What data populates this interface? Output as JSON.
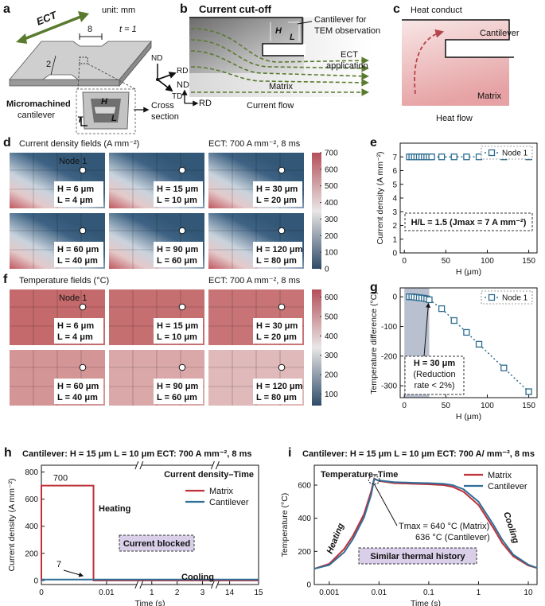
{
  "panels": {
    "a": {
      "label": "a",
      "ect": "ECT",
      "unit": "unit: mm",
      "length": "8",
      "thickness": "t = 1",
      "width": "2",
      "axes": [
        "ND",
        "RD",
        "TD"
      ],
      "cantilever": [
        "Micromachined",
        "cantilever"
      ],
      "dims": [
        "H",
        "L",
        "T"
      ],
      "section": [
        "Cross",
        "section"
      ]
    },
    "b": {
      "label": "b",
      "title": "Current cut-off",
      "cantilever": [
        "Cantilever for",
        "TEM observation"
      ],
      "ect": [
        "ECT",
        "application"
      ],
      "matrix": "Matrix",
      "flow": "Current flow",
      "axes": [
        "ND",
        "RD"
      ],
      "dims": [
        "H",
        "L"
      ]
    },
    "c": {
      "label": "c",
      "title": "Heat conduct",
      "cantilever": "Cantilever",
      "matrix": "Matrix",
      "flow": "Heat flow"
    },
    "d": {
      "label": "d",
      "title": "Current density fields (A mm⁻²)",
      "condition": "ECT: 700 A mm⁻², 8 ms",
      "node": "Node 1",
      "tiles": [
        [
          "H = 6 μm",
          "L = 4 μm"
        ],
        [
          "H = 15 μm",
          "L = 10 μm"
        ],
        [
          "H = 30 μm",
          "L = 20 μm"
        ],
        [
          "H = 60 μm",
          "L = 40 μm"
        ],
        [
          "H = 90 μm",
          "L = 60 μm"
        ],
        [
          "H = 120 μm",
          "L = 80 μm"
        ]
      ],
      "colorbar": {
        "range": [
          0,
          700
        ],
        "ticks": [
          0,
          100,
          200,
          300,
          400,
          500,
          600,
          700
        ]
      }
    },
    "f": {
      "label": "f",
      "title": "Temperature fields (°C)",
      "condition": "ECT: 700 A mm⁻², 8 ms",
      "node": "Node 1",
      "tiles": [
        [
          "H = 6 μm",
          "L = 4 μm"
        ],
        [
          "H = 15 μm",
          "L = 10 μm"
        ],
        [
          "H = 30 μm",
          "L = 20 μm"
        ],
        [
          "H = 60 μm",
          "L = 40 μm"
        ],
        [
          "H = 90 μm",
          "L = 60 μm"
        ],
        [
          "H = 120 μm",
          "L = 80 μm"
        ]
      ],
      "colorbar": {
        "range": [
          40,
          640
        ],
        "ticks": [
          100,
          200,
          300,
          400,
          500,
          600
        ]
      }
    }
  },
  "chart_data": [
    {
      "panel": "e",
      "type": "scatter",
      "x": [
        6,
        9,
        12,
        15,
        18,
        21,
        24,
        27,
        30,
        33,
        45,
        60,
        75,
        90,
        120,
        150
      ],
      "series": [
        {
          "name": "Node 1",
          "color": "#2c6b8f",
          "values": [
            7,
            7,
            7,
            7,
            7,
            7,
            7,
            7,
            7,
            7,
            7,
            7,
            7,
            7,
            7,
            7
          ]
        }
      ],
      "xlim": [
        -5,
        160
      ],
      "xticks": [
        0,
        50,
        100,
        150
      ],
      "ylim": [
        0,
        8
      ],
      "yticks": [
        0,
        1,
        2,
        3,
        4,
        5,
        6,
        7
      ],
      "xlabel": "H (μm)",
      "ylabel": "Current density (A mm⁻²)",
      "legend": "upper right",
      "annotations": [
        "H/L = 1.5 (Jmax = 7 A mm⁻²)"
      ]
    },
    {
      "panel": "g",
      "type": "scatter",
      "x": [
        6,
        9,
        12,
        15,
        18,
        21,
        24,
        27,
        30,
        45,
        60,
        75,
        90,
        120,
        150
      ],
      "series": [
        {
          "name": "Node 1",
          "color": "#2c6b8f",
          "values": [
            0,
            0,
            -1,
            -2,
            -3,
            -4,
            -5,
            -7,
            -10,
            -40,
            -80,
            -120,
            -160,
            -240,
            -320
          ]
        }
      ],
      "xlim": [
        -5,
        160
      ],
      "xticks": [
        0,
        50,
        100,
        150
      ],
      "ylim": [
        -340,
        30
      ],
      "yticks": [
        -300,
        -200,
        -100,
        0
      ],
      "highlight_xrange": [
        0,
        30
      ],
      "xlabel": "H (μm)",
      "ylabel": "Temperature difference (°C)",
      "legend": "upper right",
      "annotations": [
        "H = 30 μm",
        "(Reduction",
        "rate < 2%)"
      ]
    },
    {
      "panel": "h",
      "type": "line",
      "subtitle": "Cantilever: H = 15 μm  L = 10 μm    ECT: 700 A mm⁻², 8 ms",
      "title": "Current density–Time",
      "xsegments": [
        [
          0,
          0.015
        ],
        [
          0.5,
          3.5
        ],
        [
          13.5,
          15
        ]
      ],
      "xticks": [
        0,
        0.01,
        1,
        2,
        3,
        14,
        15
      ],
      "ylim": [
        -30,
        850
      ],
      "yticks": [
        0,
        200,
        400,
        600,
        800
      ],
      "series": [
        {
          "name": "Matrix",
          "color": "#c0303a",
          "x": [
            0,
            0,
            0.008,
            0.008,
            15
          ],
          "values": [
            0,
            700,
            700,
            0,
            0
          ]
        },
        {
          "name": "Cantilever",
          "color": "#2f6f97",
          "x": [
            0,
            15
          ],
          "values": [
            7,
            7
          ]
        }
      ],
      "xlabel": "Time (s)",
      "ylabel": "Current density (A mm⁻²)",
      "legend": "upper right",
      "annotations": [
        "700",
        "7",
        "Heating",
        "Cooling",
        "Current blocked"
      ]
    },
    {
      "panel": "i",
      "type": "line",
      "subtitle": "Cantilever: H = 15 μm  L = 10 μm   ECT: 700 A/ mm⁻², 8 ms",
      "title": "Temperature–Time",
      "xscale": "log",
      "x": [
        0.0005,
        0.001,
        0.002,
        0.003,
        0.005,
        0.007,
        0.008,
        0.01,
        0.02,
        0.05,
        0.1,
        0.2,
        0.3,
        0.5,
        1,
        2,
        3,
        5,
        10,
        15
      ],
      "xlim": [
        0.0005,
        15
      ],
      "xticks": [
        0.001,
        0.01,
        0.1,
        1,
        10
      ],
      "ylim": [
        0,
        720
      ],
      "yticks": [
        0,
        200,
        400,
        600
      ],
      "series": [
        {
          "name": "Matrix",
          "color": "#c0303a",
          "values": [
            95,
            125,
            215,
            295,
            425,
            565,
            640,
            625,
            612,
            608,
            605,
            600,
            590,
            560,
            480,
            340,
            250,
            170,
            115,
            100
          ]
        },
        {
          "name": "Cantilever",
          "color": "#2f6f97",
          "values": [
            95,
            118,
            195,
            275,
            405,
            545,
            636,
            628,
            618,
            614,
            612,
            608,
            600,
            575,
            500,
            360,
            270,
            180,
            120,
            100
          ]
        }
      ],
      "xlabel": "Time (s)",
      "ylabel": "Temperature (°C)",
      "legend": "upper right",
      "annotations": [
        "Heating",
        "Cooling",
        "Tmax = 640 °C (Matrix)",
        "636 °C (Cantilever)",
        "Similar thermal history"
      ]
    }
  ]
}
